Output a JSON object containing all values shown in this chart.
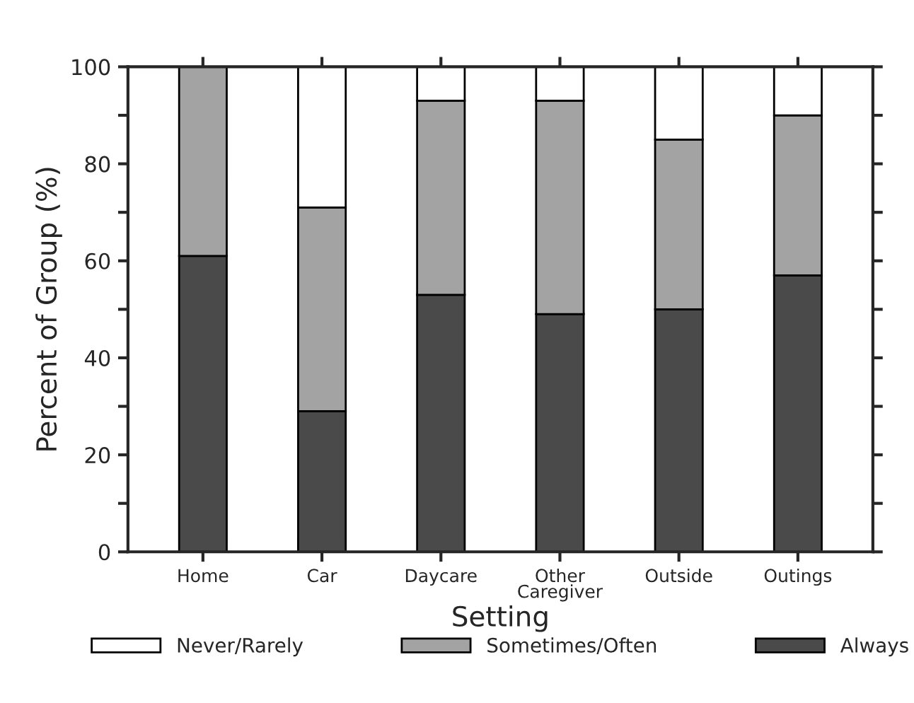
{
  "chart_data": {
    "type": "bar",
    "stacked": true,
    "xlabel": "Setting",
    "ylabel": "Percent of Group (%)",
    "categories": [
      "Home",
      "Car",
      "Daycare",
      "Other\nCaregiver",
      "Outside",
      "Outings"
    ],
    "series": [
      {
        "name": "Always",
        "color": "#4a4a4a",
        "values": [
          61,
          29,
          53,
          49,
          50,
          57
        ]
      },
      {
        "name": "Sometimes/Often",
        "color": "#a3a3a3",
        "values": [
          39,
          42,
          40,
          44,
          35,
          33
        ]
      },
      {
        "name": "Never/Rarely",
        "color": "#ffffff",
        "values": [
          null,
          29,
          7,
          7,
          15,
          10
        ]
      }
    ],
    "ylim": [
      0,
      100
    ],
    "yticks": [
      0,
      {
        "value": 10,
        "label": null
      },
      20,
      {
        "value": 30,
        "label": null
      },
      40,
      {
        "value": 50,
        "label": null
      },
      60,
      {
        "value": 70,
        "label": null
      },
      80,
      {
        "value": 90,
        "label": null
      },
      100
    ],
    "grid": false,
    "legend": "bottom"
  }
}
